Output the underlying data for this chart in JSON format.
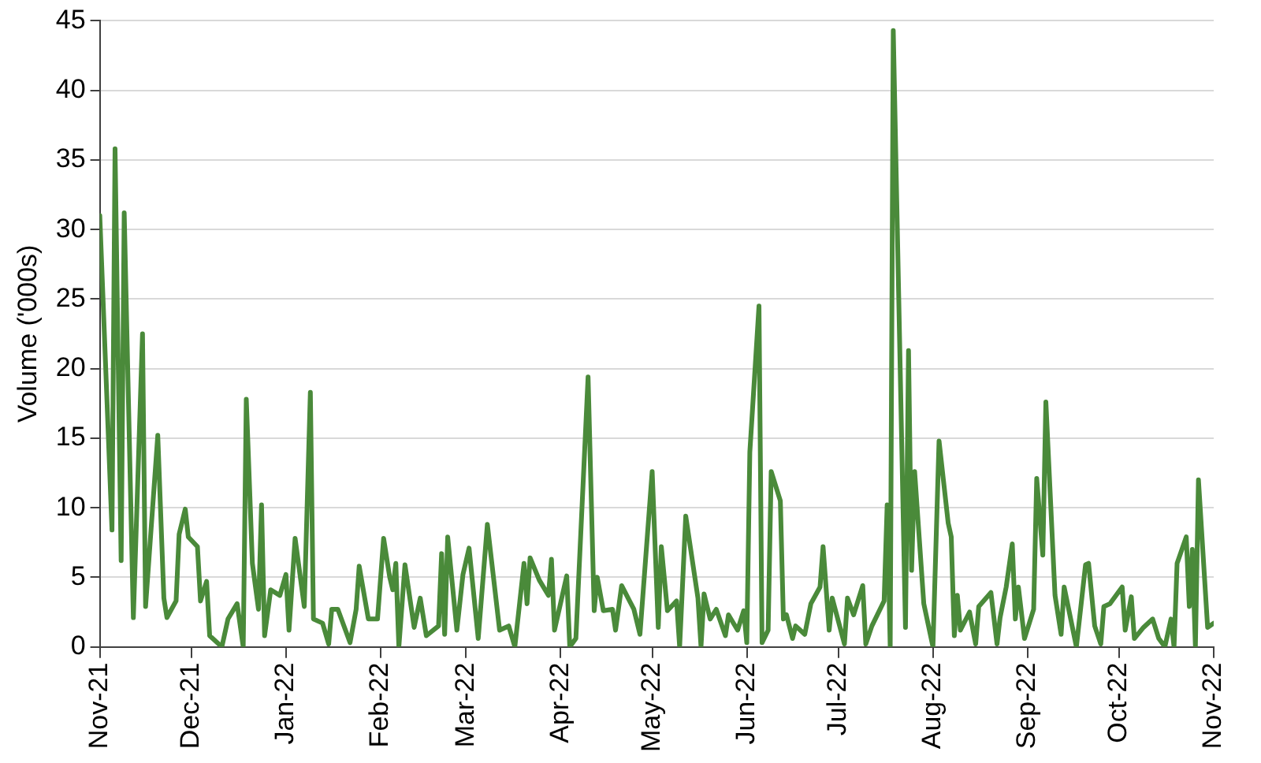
{
  "chart_data": {
    "type": "line",
    "ylabel": "Volume ('000s)",
    "x": [
      "2021-11-01",
      "2021-11-05",
      "2021-11-06",
      "2021-11-08",
      "2021-11-09",
      "2021-11-12",
      "2021-11-15",
      "2021-11-16",
      "2021-11-20",
      "2021-11-22",
      "2021-11-23",
      "2021-11-26",
      "2021-11-27",
      "2021-11-29",
      "2021-11-30",
      "2021-12-03",
      "2021-12-04",
      "2021-12-06",
      "2021-12-07",
      "2021-12-11",
      "2021-12-13",
      "2021-12-16",
      "2021-12-18",
      "2021-12-19",
      "2021-12-21",
      "2021-12-23",
      "2021-12-24",
      "2021-12-25",
      "2021-12-27",
      "2021-12-30",
      "2022-01-01",
      "2022-01-02",
      "2022-01-04",
      "2022-01-07",
      "2022-01-09",
      "2022-01-10",
      "2022-01-13",
      "2022-01-15",
      "2022-01-16",
      "2022-01-18",
      "2022-01-22",
      "2022-01-24",
      "2022-01-25",
      "2022-01-28",
      "2022-01-31",
      "2022-02-02",
      "2022-02-04",
      "2022-02-05",
      "2022-02-06",
      "2022-02-07",
      "2022-02-09",
      "2022-02-12",
      "2022-02-14",
      "2022-02-16",
      "2022-02-20",
      "2022-02-21",
      "2022-02-22",
      "2022-02-23",
      "2022-02-26",
      "2022-02-28",
      "2022-03-02",
      "2022-03-05",
      "2022-03-08",
      "2022-03-12",
      "2022-03-15",
      "2022-03-17",
      "2022-03-20",
      "2022-03-21",
      "2022-03-22",
      "2022-03-25",
      "2022-03-28",
      "2022-03-29",
      "2022-03-30",
      "2022-04-03",
      "2022-04-04",
      "2022-04-06",
      "2022-04-10",
      "2022-04-12",
      "2022-04-13",
      "2022-04-15",
      "2022-04-18",
      "2022-04-19",
      "2022-04-21",
      "2022-04-25",
      "2022-04-27",
      "2022-05-01",
      "2022-05-03",
      "2022-05-04",
      "2022-05-06",
      "2022-05-09",
      "2022-05-10",
      "2022-05-12",
      "2022-05-16",
      "2022-05-17",
      "2022-05-18",
      "2022-05-20",
      "2022-05-22",
      "2022-05-25",
      "2022-05-26",
      "2022-05-29",
      "2022-05-31",
      "2022-06-01",
      "2022-06-02",
      "2022-06-05",
      "2022-06-06",
      "2022-06-08",
      "2022-06-09",
      "2022-06-12",
      "2022-06-13",
      "2022-06-14",
      "2022-06-16",
      "2022-06-17",
      "2022-06-20",
      "2022-06-22",
      "2022-06-25",
      "2022-06-26",
      "2022-06-28",
      "2022-06-29",
      "2022-07-03",
      "2022-07-04",
      "2022-07-06",
      "2022-07-09",
      "2022-07-10",
      "2022-07-12",
      "2022-07-16",
      "2022-07-17",
      "2022-07-18",
      "2022-07-19",
      "2022-07-23",
      "2022-07-24",
      "2022-07-25",
      "2022-07-26",
      "2022-07-29",
      "2022-08-01",
      "2022-08-03",
      "2022-08-06",
      "2022-08-07",
      "2022-08-08",
      "2022-08-09",
      "2022-08-10",
      "2022-08-13",
      "2022-08-15",
      "2022-08-16",
      "2022-08-20",
      "2022-08-22",
      "2022-08-23",
      "2022-08-25",
      "2022-08-27",
      "2022-08-28",
      "2022-08-29",
      "2022-08-31",
      "2022-09-03",
      "2022-09-04",
      "2022-09-06",
      "2022-09-07",
      "2022-09-10",
      "2022-09-12",
      "2022-09-13",
      "2022-09-17",
      "2022-09-20",
      "2022-09-21",
      "2022-09-23",
      "2022-09-25",
      "2022-09-26",
      "2022-09-28",
      "2022-10-02",
      "2022-10-03",
      "2022-10-05",
      "2022-10-06",
      "2022-10-09",
      "2022-10-12",
      "2022-10-14",
      "2022-10-16",
      "2022-10-18",
      "2022-10-19",
      "2022-10-20",
      "2022-10-23",
      "2022-10-24",
      "2022-10-25",
      "2022-10-26",
      "2022-10-27",
      "2022-10-30",
      "2022-11-01"
    ],
    "series": [
      {
        "color": "#4a8a3a",
        "values": [
          31,
          8.4,
          35.8,
          6.2,
          31.2,
          2.1,
          22.5,
          2.9,
          15.2,
          3.5,
          2.1,
          3.3,
          8.1,
          9.9,
          7.9,
          7.2,
          3.3,
          4.7,
          0.8,
          0,
          2,
          3.1,
          0,
          17.8,
          6,
          2.7,
          10.2,
          0.8,
          4.1,
          3.7,
          5.2,
          1.2,
          7.8,
          2.9,
          18.3,
          2,
          1.7,
          0.2,
          2.7,
          2.7,
          0.3,
          2.7,
          5.8,
          2,
          2,
          7.8,
          5,
          4.1,
          6,
          0,
          5.9,
          1.4,
          3.5,
          0.8,
          1.5,
          6.7,
          0.9,
          7.9,
          1.2,
          5.2,
          7.1,
          0.6,
          8.8,
          1.2,
          1.5,
          0,
          6,
          3.1,
          6.4,
          4.8,
          3.7,
          6.3,
          1.2,
          5.1,
          0,
          0.6,
          19.4,
          2.6,
          5,
          2.6,
          2.7,
          1.2,
          4.4,
          2.7,
          0.9,
          12.6,
          1.4,
          7.2,
          2.6,
          3.3,
          0,
          9.4,
          3.5,
          0,
          3.8,
          2,
          2.7,
          0.8,
          2.3,
          1.2,
          2.6,
          0.3,
          14,
          24.5,
          0.3,
          1.2,
          12.6,
          10.5,
          2,
          2.3,
          0.6,
          1.5,
          0.9,
          3.1,
          4.3,
          7.2,
          1.2,
          3.5,
          0.2,
          3.5,
          2.3,
          4.4,
          0.2,
          1.5,
          3.3,
          10.2,
          0,
          44.3,
          1.4,
          21.3,
          5.5,
          12.6,
          3.1,
          0,
          14.8,
          8.9,
          7.9,
          0.8,
          3.7,
          1.2,
          2.5,
          0.2,
          2.9,
          3.9,
          0.2,
          2.1,
          4.3,
          7.4,
          2,
          4.3,
          0.6,
          2.7,
          12.1,
          6.6,
          17.6,
          3.7,
          0.9,
          4.3,
          0,
          5.9,
          6,
          1.5,
          0.2,
          2.9,
          3.1,
          4.3,
          1.2,
          3.6,
          0.6,
          1.4,
          2,
          0.6,
          0,
          2,
          0,
          6,
          7.9,
          2.9,
          7,
          0,
          12,
          1.4,
          1.7
        ]
      }
    ],
    "xlim": [
      "2021-11-01",
      "2022-11-01"
    ],
    "xticks": [
      {
        "value": "2021-11-01",
        "label": "Nov-21"
      },
      {
        "value": "2021-12-01",
        "label": "Dec-21"
      },
      {
        "value": "2022-01-01",
        "label": "Jan-22"
      },
      {
        "value": "2022-02-01",
        "label": "Feb-22"
      },
      {
        "value": "2022-03-01",
        "label": "Mar-22"
      },
      {
        "value": "2022-04-01",
        "label": "Apr-22"
      },
      {
        "value": "2022-05-01",
        "label": "May-22"
      },
      {
        "value": "2022-06-01",
        "label": "Jun-22"
      },
      {
        "value": "2022-07-01",
        "label": "Jul-22"
      },
      {
        "value": "2022-08-01",
        "label": "Aug-22"
      },
      {
        "value": "2022-09-01",
        "label": "Sep-22"
      },
      {
        "value": "2022-10-01",
        "label": "Oct-22"
      },
      {
        "value": "2022-11-01",
        "label": "Nov-22"
      }
    ],
    "ylim": [
      0,
      45
    ],
    "yticks": [
      0,
      5,
      10,
      15,
      20,
      25,
      30,
      35,
      40,
      45
    ],
    "grid": "y",
    "legend": false,
    "marker": "none",
    "line_style": "solid"
  }
}
